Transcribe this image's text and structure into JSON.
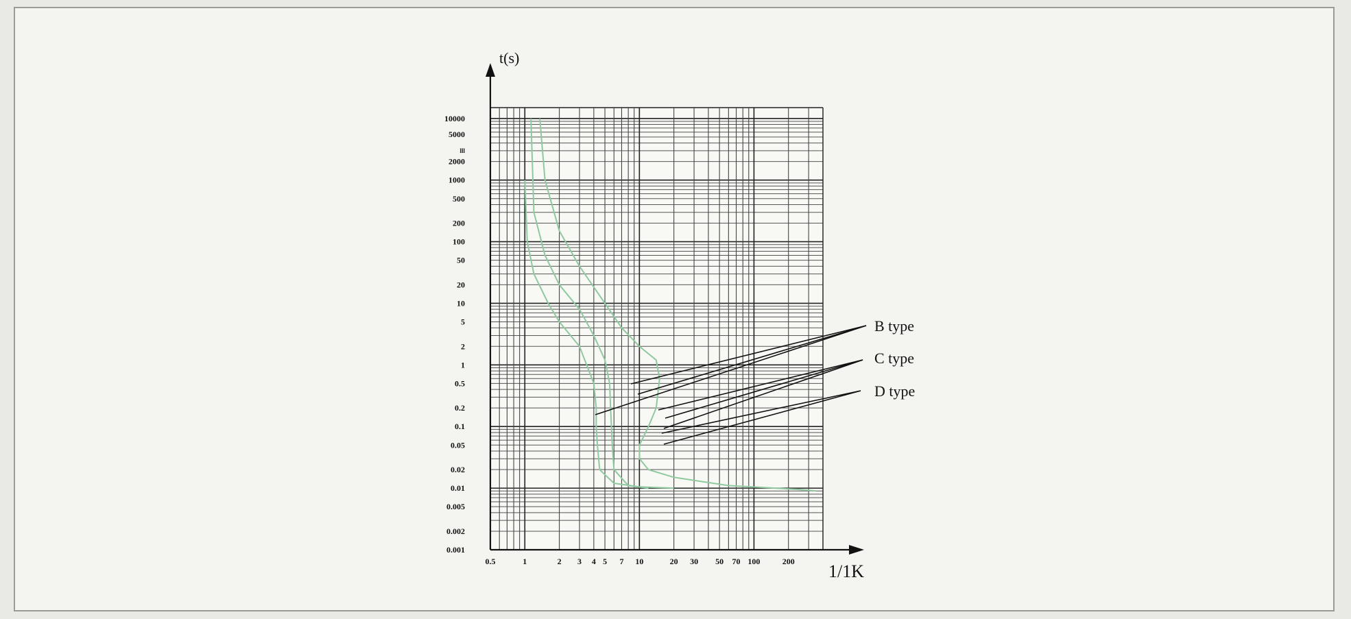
{
  "chart_data": {
    "type": "line",
    "title": "",
    "xlabel": "1/1K",
    "ylabel": "t(s)",
    "x_scale": "log",
    "y_scale": "log",
    "xlim": [
      0.5,
      400
    ],
    "ylim": [
      0.001,
      15000
    ],
    "grid": true,
    "x_tick_labels": [
      "0.5",
      "1",
      "2",
      "3",
      "4",
      "5",
      "7",
      "10",
      "20",
      "30",
      "50",
      "70",
      "100",
      "200"
    ],
    "y_tick_labels": [
      "10000",
      "5000",
      "lll",
      "2000",
      "1000",
      "500",
      "200",
      "100",
      "50",
      "20",
      "10",
      "5",
      "2",
      "1",
      "0.5",
      "0.2",
      "0.1",
      "0.05",
      "0.02",
      "0.01",
      "0.005",
      "0.002",
      "0.001"
    ],
    "series": [
      {
        "name": "B type",
        "label_color": "#111111",
        "color": "#8fc9a0",
        "points": [
          [
            1.13,
            10000
          ],
          [
            1.2,
            300
          ],
          [
            1.5,
            60
          ],
          [
            2,
            20
          ],
          [
            3,
            8
          ],
          [
            4,
            3
          ],
          [
            5,
            1.2
          ],
          [
            5.5,
            0.5
          ],
          [
            5.6,
            0.2
          ],
          [
            5.7,
            0.1
          ],
          [
            5.8,
            0.05
          ],
          [
            6,
            0.02
          ],
          [
            8,
            0.011
          ],
          [
            12,
            0.01
          ]
        ]
      },
      {
        "name": "C type",
        "label_color": "#111111",
        "color": "#8fc9a0",
        "points": [
          [
            1.35,
            10000
          ],
          [
            1.5,
            1000
          ],
          [
            2,
            150
          ],
          [
            3,
            40
          ],
          [
            5,
            10
          ],
          [
            7,
            4
          ],
          [
            10,
            2
          ],
          [
            14,
            1.2
          ],
          [
            15,
            0.6
          ],
          [
            14,
            0.2
          ],
          [
            12,
            0.1
          ],
          [
            10,
            0.05
          ],
          [
            10,
            0.03
          ],
          [
            12,
            0.02
          ],
          [
            20,
            0.015
          ],
          [
            60,
            0.011
          ],
          [
            250,
            0.0095
          ],
          [
            350,
            0.009
          ]
        ]
      },
      {
        "name": "D type",
        "label_color": "#111111",
        "color": "#8fc9a0",
        "points": [
          [
            1,
            1000
          ],
          [
            1.05,
            100
          ],
          [
            1.2,
            30
          ],
          [
            1.6,
            10
          ],
          [
            2,
            5
          ],
          [
            3,
            2
          ],
          [
            4,
            0.5
          ],
          [
            4.2,
            0.2
          ],
          [
            4.2,
            0.1
          ],
          [
            4.3,
            0.05
          ],
          [
            4.5,
            0.02
          ],
          [
            6,
            0.012
          ],
          [
            10,
            0.0105
          ],
          [
            20,
            0.01
          ]
        ]
      }
    ]
  }
}
